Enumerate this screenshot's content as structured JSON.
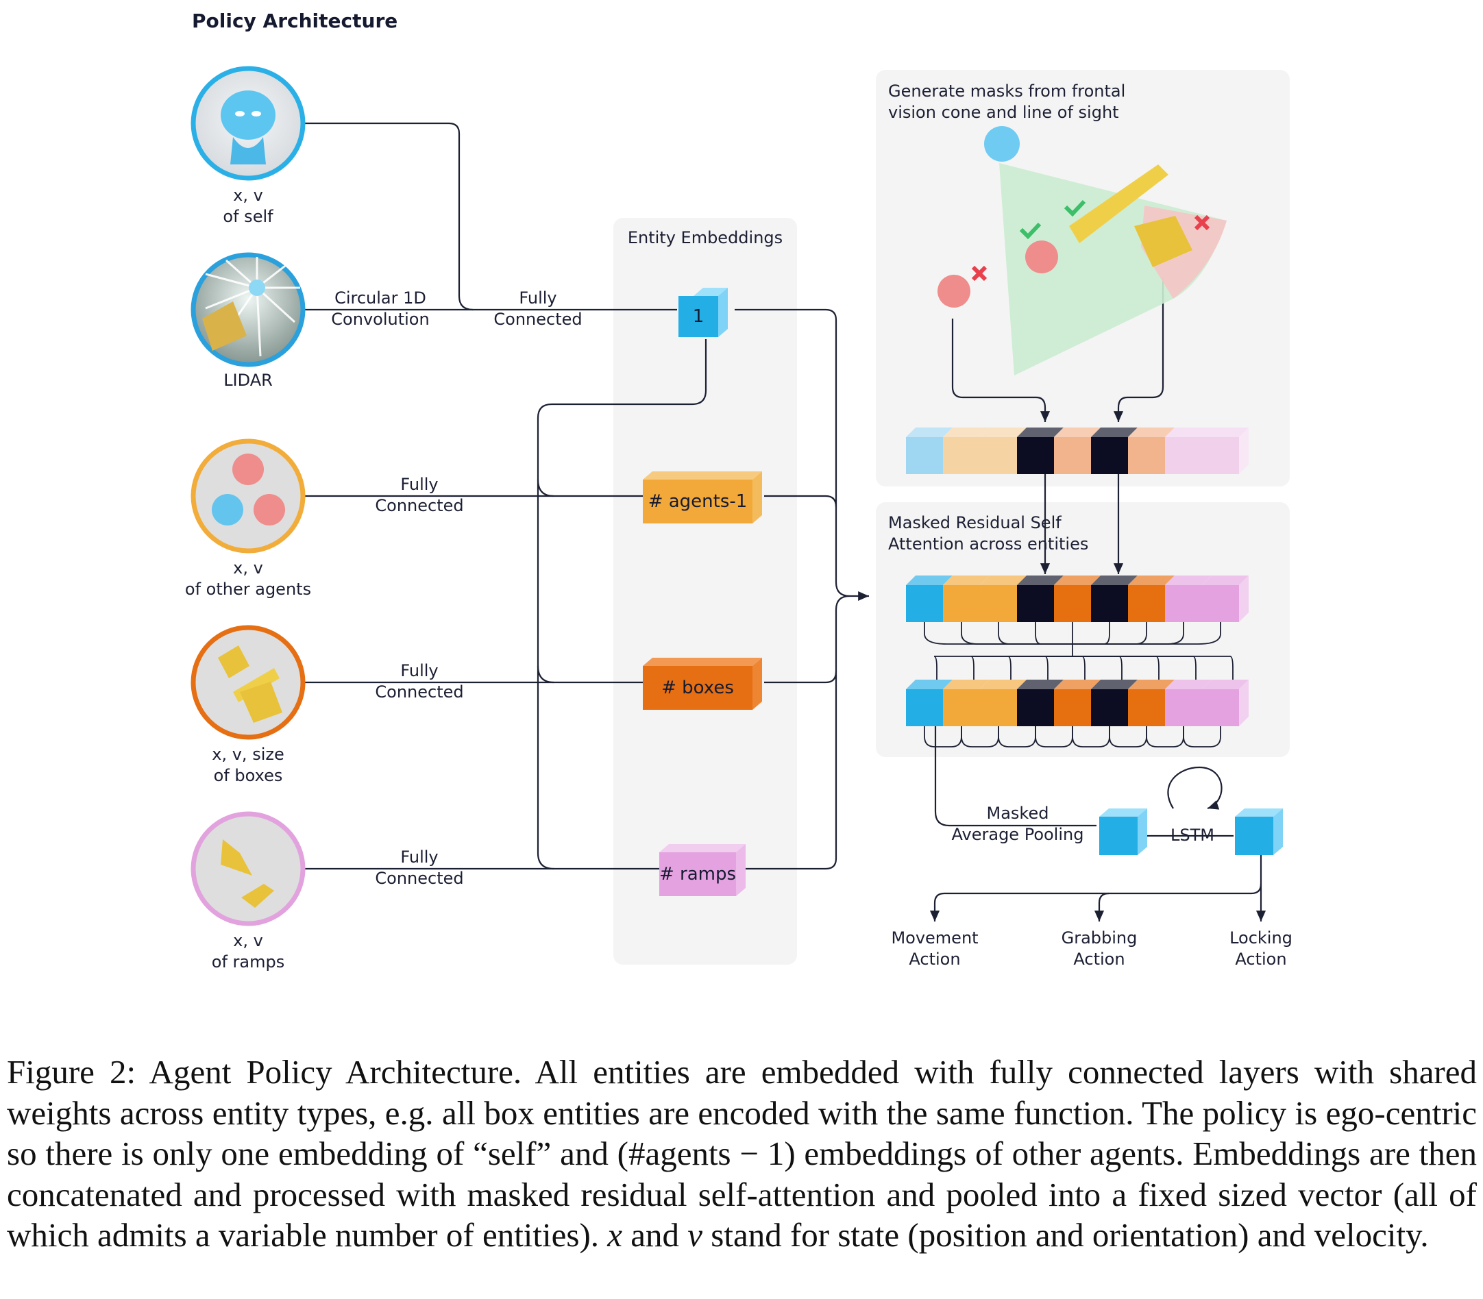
{
  "figure": {
    "title": "Policy Architecture",
    "inputs": [
      {
        "id": "self",
        "line1": "x, v",
        "line2": "of self",
        "color": "#2ab0e6"
      },
      {
        "id": "lidar",
        "line1": "LIDAR",
        "line2": "",
        "color": "#2aa0dc"
      },
      {
        "id": "agents",
        "line1": "x, v",
        "line2": "of other agents",
        "color": "#f2ac3a"
      },
      {
        "id": "boxes",
        "line1": "x, v, size",
        "line2": "of boxes",
        "color": "#e56f12"
      },
      {
        "id": "ramps",
        "line1": "x, v",
        "line2": "of ramps",
        "color": "#e2a2de"
      }
    ],
    "conv_label": [
      "Circular 1D",
      "Convolution"
    ],
    "fc_label": [
      "Fully",
      "Connected"
    ],
    "entity_panel_title": "Entity Embeddings",
    "embeddings": [
      {
        "id": "self",
        "label": "1",
        "color": "#23aee6"
      },
      {
        "id": "agents",
        "label": "# agents-1",
        "color": "#f2a93a"
      },
      {
        "id": "boxes",
        "label": "# boxes",
        "color": "#e56f12"
      },
      {
        "id": "ramps",
        "label": "# ramps",
        "color": "#e4a2e0"
      }
    ],
    "mask_panel_title": [
      "Generate masks from frontal",
      "vision cone and line of sight"
    ],
    "attn_panel_title": [
      "Masked Residual Self",
      "Attention across entities"
    ],
    "token_colors": [
      "#23aee6",
      "#f2a93a",
      "#f2a93a",
      "#0c0d22",
      "#e66f10",
      "#0c0d22",
      "#e66f10",
      "#e4a2e0",
      "#e4a2e0"
    ],
    "mask_token_colors": [
      "#9fd6f2",
      "#f6d3a2",
      "#f6d3a2",
      "#0c0d22",
      "#f2b48c",
      "#0c0d22",
      "#f2b48c",
      "#f1d0ec",
      "#f1d0ec"
    ],
    "pooling_label": [
      "Masked",
      "Average Pooling"
    ],
    "lstm_label": "LSTM",
    "outputs": [
      {
        "line1": "Movement",
        "line2": "Action"
      },
      {
        "line1": "Grabbing",
        "line2": "Action"
      },
      {
        "line1": "Locking",
        "line2": "Action"
      }
    ],
    "check_color": "#3bbf68",
    "cross_color": "#e8404c"
  },
  "caption": {
    "label": "Figure 2:",
    "text_a": " Agent Policy Architecture. All entities are embedded with fully connected layers with shared weights across entity types, e.g. all box entities are encoded with the same function. The policy is ego-centric so there is only one embedding of “self” and (#agents − 1) embeddings of other agents. Embeddings are then concatenated and processed with masked residual self-attention and pooled into a fixed sized vector (all of which admits a variable number of entities). ",
    "var_x": "x",
    "text_and": " and ",
    "var_v": "v",
    "text_b": " stand for state (position and orientation) and velocity."
  }
}
